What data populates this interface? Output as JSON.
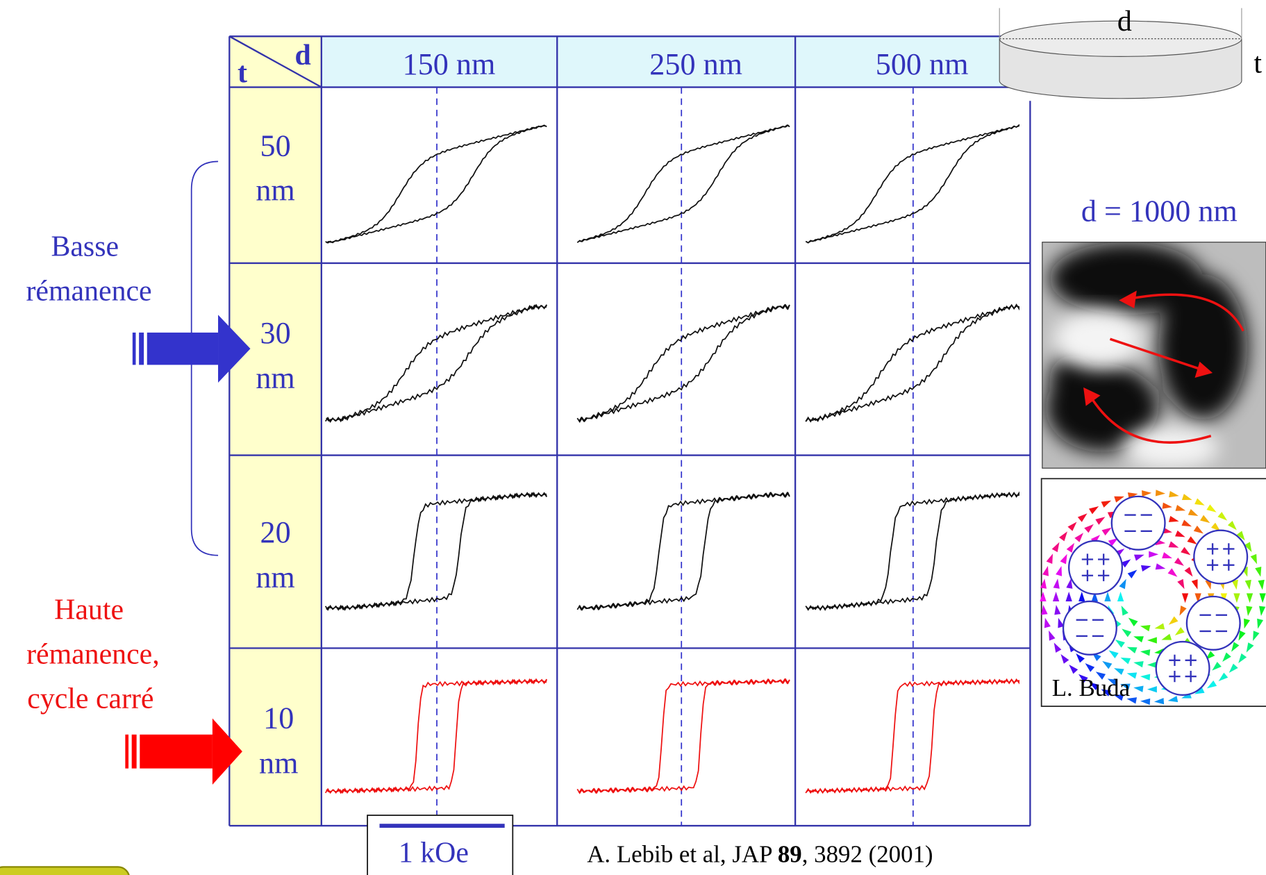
{
  "header": {
    "corner_d": "d",
    "corner_t": "t",
    "diameters": [
      "150 nm",
      "250 nm",
      "500 nm"
    ]
  },
  "thicknesses": [
    {
      "value": "50",
      "unit": "nm"
    },
    {
      "value": "30",
      "unit": "nm"
    },
    {
      "value": "20",
      "unit": "nm"
    },
    {
      "value": "10",
      "unit": "nm"
    }
  ],
  "annotations": {
    "low_remanence": [
      "Basse",
      "rémanence"
    ],
    "high_remanence": [
      "Haute",
      "rémanence,",
      "cycle carré"
    ]
  },
  "disk": {
    "diameter_label": "d",
    "thickness_label": "t"
  },
  "image_panel": {
    "title": "d = 1000 nm",
    "credit": "L. Buda"
  },
  "scale_bar": "1 kOe",
  "citation": {
    "before": "A. Lebib et al, JAP ",
    "volume": "89",
    "after": ", 3892 (2001)"
  }
}
